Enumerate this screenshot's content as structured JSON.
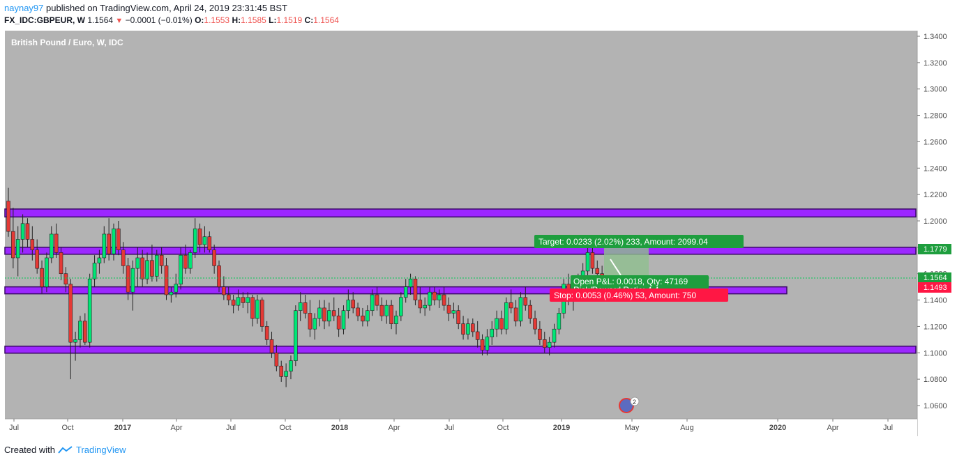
{
  "header": {
    "user": "naynay97",
    "published": "published on TradingView.com, April 24, 2019 23:31:45 BST",
    "symbol": "FX_IDC:GBPEUR, W",
    "last": "1.1564",
    "change_arrow": "▼",
    "change": "−0.0001 (−0.01%)",
    "o_label": "O:",
    "o_value": "1.1553",
    "h_label": "H:",
    "h_value": "1.1585",
    "l_label": "L:",
    "l_value": "1.1519",
    "c_label": "C:",
    "c_value": "1.1564"
  },
  "chart_title": "British Pound / Euro, W, IDC",
  "footer": {
    "created_with": "Created with",
    "brand": "TradingView"
  },
  "colors": {
    "background": "#b3b3b3",
    "zone_fill": "#9c27ff",
    "up_candle": "#00e676",
    "down_candle": "#e53935",
    "target_label": "#1e9e3e",
    "stop_label": "#ff1744",
    "price_label": "#1e9e3e"
  },
  "price_labels": {
    "current": "1.1564",
    "entry": "1.1493",
    "target_price": "1.1779"
  },
  "position_tool": {
    "target": "Target: 0.0233 (2.02%) 233, Amount: 2099.04",
    "open": "Open P&L: 0.0018, Qty: 47169",
    "ratio": "Risk/Reward Ratio: 4.4",
    "stop": "Stop: 0.0053 (0.46%) 53, Amount: 750"
  },
  "badge_count": "2",
  "chart_data": {
    "type": "candlestick",
    "title": "British Pound / Euro, W, IDC",
    "y_ticks": [
      "1.3400",
      "1.3200",
      "1.3000",
      "1.2800",
      "1.2600",
      "1.2400",
      "1.2200",
      "1.2000",
      "1.1800",
      "1.1600",
      "1.1400",
      "1.1200",
      "1.1000",
      "1.0800",
      "1.0600"
    ],
    "x_ticks": [
      "Jul",
      "Oct",
      "2017",
      "Apr",
      "Jul",
      "Oct",
      "2018",
      "Apr",
      "Jul",
      "Oct",
      "2019",
      "May",
      "Aug",
      "2020",
      "Apr",
      "Jul"
    ],
    "zones": [
      {
        "low": 1.203,
        "high": 1.209
      },
      {
        "low": 1.177,
        "high": 1.18
      },
      {
        "low": 1.147,
        "high": 1.15
      },
      {
        "low": 1.101,
        "high": 1.105
      }
    ],
    "candles": [
      {
        "o": 1.215,
        "h": 1.225,
        "l": 1.188,
        "c": 1.192
      },
      {
        "o": 1.192,
        "h": 1.21,
        "l": 1.164,
        "c": 1.172
      },
      {
        "o": 1.172,
        "h": 1.196,
        "l": 1.158,
        "c": 1.186
      },
      {
        "o": 1.186,
        "h": 1.205,
        "l": 1.176,
        "c": 1.198
      },
      {
        "o": 1.198,
        "h": 1.202,
        "l": 1.18,
        "c": 1.186
      },
      {
        "o": 1.186,
        "h": 1.196,
        "l": 1.17,
        "c": 1.178
      },
      {
        "o": 1.178,
        "h": 1.186,
        "l": 1.16,
        "c": 1.164
      },
      {
        "o": 1.164,
        "h": 1.17,
        "l": 1.145,
        "c": 1.15
      },
      {
        "o": 1.15,
        "h": 1.176,
        "l": 1.146,
        "c": 1.172
      },
      {
        "o": 1.172,
        "h": 1.196,
        "l": 1.168,
        "c": 1.19
      },
      {
        "o": 1.19,
        "h": 1.198,
        "l": 1.172,
        "c": 1.176
      },
      {
        "o": 1.176,
        "h": 1.18,
        "l": 1.155,
        "c": 1.16
      },
      {
        "o": 1.16,
        "h": 1.165,
        "l": 1.146,
        "c": 1.152
      },
      {
        "o": 1.152,
        "h": 1.156,
        "l": 1.08,
        "c": 1.108
      },
      {
        "o": 1.108,
        "h": 1.116,
        "l": 1.094,
        "c": 1.11
      },
      {
        "o": 1.11,
        "h": 1.128,
        "l": 1.104,
        "c": 1.124
      },
      {
        "o": 1.124,
        "h": 1.13,
        "l": 1.106,
        "c": 1.108
      },
      {
        "o": 1.108,
        "h": 1.16,
        "l": 1.104,
        "c": 1.156
      },
      {
        "o": 1.156,
        "h": 1.174,
        "l": 1.15,
        "c": 1.168
      },
      {
        "o": 1.168,
        "h": 1.178,
        "l": 1.16,
        "c": 1.172
      },
      {
        "o": 1.172,
        "h": 1.196,
        "l": 1.168,
        "c": 1.19
      },
      {
        "o": 1.19,
        "h": 1.202,
        "l": 1.17,
        "c": 1.175
      },
      {
        "o": 1.175,
        "h": 1.198,
        "l": 1.17,
        "c": 1.194
      },
      {
        "o": 1.194,
        "h": 1.2,
        "l": 1.174,
        "c": 1.178
      },
      {
        "o": 1.178,
        "h": 1.184,
        "l": 1.16,
        "c": 1.166
      },
      {
        "o": 1.166,
        "h": 1.172,
        "l": 1.14,
        "c": 1.146
      },
      {
        "o": 1.146,
        "h": 1.17,
        "l": 1.132,
        "c": 1.164
      },
      {
        "o": 1.164,
        "h": 1.18,
        "l": 1.15,
        "c": 1.172
      },
      {
        "o": 1.172,
        "h": 1.178,
        "l": 1.15,
        "c": 1.156
      },
      {
        "o": 1.156,
        "h": 1.176,
        "l": 1.152,
        "c": 1.17
      },
      {
        "o": 1.17,
        "h": 1.182,
        "l": 1.154,
        "c": 1.158
      },
      {
        "o": 1.158,
        "h": 1.178,
        "l": 1.154,
        "c": 1.174
      },
      {
        "o": 1.174,
        "h": 1.18,
        "l": 1.16,
        "c": 1.166
      },
      {
        "o": 1.166,
        "h": 1.172,
        "l": 1.14,
        "c": 1.144
      },
      {
        "o": 1.144,
        "h": 1.15,
        "l": 1.138,
        "c": 1.146
      },
      {
        "o": 1.146,
        "h": 1.16,
        "l": 1.142,
        "c": 1.152
      },
      {
        "o": 1.152,
        "h": 1.18,
        "l": 1.148,
        "c": 1.174
      },
      {
        "o": 1.174,
        "h": 1.182,
        "l": 1.16,
        "c": 1.164
      },
      {
        "o": 1.164,
        "h": 1.178,
        "l": 1.16,
        "c": 1.176
      },
      {
        "o": 1.176,
        "h": 1.202,
        "l": 1.172,
        "c": 1.194
      },
      {
        "o": 1.194,
        "h": 1.198,
        "l": 1.176,
        "c": 1.182
      },
      {
        "o": 1.182,
        "h": 1.196,
        "l": 1.176,
        "c": 1.188
      },
      {
        "o": 1.188,
        "h": 1.192,
        "l": 1.176,
        "c": 1.178
      },
      {
        "o": 1.178,
        "h": 1.182,
        "l": 1.16,
        "c": 1.166
      },
      {
        "o": 1.166,
        "h": 1.17,
        "l": 1.146,
        "c": 1.15
      },
      {
        "o": 1.15,
        "h": 1.158,
        "l": 1.14,
        "c": 1.144
      },
      {
        "o": 1.144,
        "h": 1.15,
        "l": 1.136,
        "c": 1.14
      },
      {
        "o": 1.14,
        "h": 1.144,
        "l": 1.13,
        "c": 1.136
      },
      {
        "o": 1.136,
        "h": 1.148,
        "l": 1.132,
        "c": 1.142
      },
      {
        "o": 1.142,
        "h": 1.146,
        "l": 1.134,
        "c": 1.138
      },
      {
        "o": 1.138,
        "h": 1.146,
        "l": 1.13,
        "c": 1.142
      },
      {
        "o": 1.142,
        "h": 1.144,
        "l": 1.12,
        "c": 1.126
      },
      {
        "o": 1.126,
        "h": 1.144,
        "l": 1.122,
        "c": 1.14
      },
      {
        "o": 1.14,
        "h": 1.142,
        "l": 1.116,
        "c": 1.12
      },
      {
        "o": 1.12,
        "h": 1.124,
        "l": 1.106,
        "c": 1.11
      },
      {
        "o": 1.11,
        "h": 1.116,
        "l": 1.096,
        "c": 1.1
      },
      {
        "o": 1.1,
        "h": 1.106,
        "l": 1.086,
        "c": 1.09
      },
      {
        "o": 1.09,
        "h": 1.094,
        "l": 1.078,
        "c": 1.082
      },
      {
        "o": 1.082,
        "h": 1.092,
        "l": 1.074,
        "c": 1.086
      },
      {
        "o": 1.086,
        "h": 1.098,
        "l": 1.08,
        "c": 1.094
      },
      {
        "o": 1.094,
        "h": 1.136,
        "l": 1.09,
        "c": 1.132
      },
      {
        "o": 1.132,
        "h": 1.146,
        "l": 1.124,
        "c": 1.138
      },
      {
        "o": 1.138,
        "h": 1.144,
        "l": 1.126,
        "c": 1.13
      },
      {
        "o": 1.13,
        "h": 1.14,
        "l": 1.112,
        "c": 1.118
      },
      {
        "o": 1.118,
        "h": 1.13,
        "l": 1.11,
        "c": 1.126
      },
      {
        "o": 1.126,
        "h": 1.14,
        "l": 1.12,
        "c": 1.134
      },
      {
        "o": 1.134,
        "h": 1.14,
        "l": 1.118,
        "c": 1.124
      },
      {
        "o": 1.124,
        "h": 1.138,
        "l": 1.12,
        "c": 1.132
      },
      {
        "o": 1.132,
        "h": 1.142,
        "l": 1.124,
        "c": 1.128
      },
      {
        "o": 1.128,
        "h": 1.134,
        "l": 1.112,
        "c": 1.118
      },
      {
        "o": 1.118,
        "h": 1.136,
        "l": 1.114,
        "c": 1.132
      },
      {
        "o": 1.132,
        "h": 1.148,
        "l": 1.126,
        "c": 1.14
      },
      {
        "o": 1.14,
        "h": 1.146,
        "l": 1.13,
        "c": 1.134
      },
      {
        "o": 1.134,
        "h": 1.138,
        "l": 1.124,
        "c": 1.128
      },
      {
        "o": 1.128,
        "h": 1.134,
        "l": 1.12,
        "c": 1.124
      },
      {
        "o": 1.124,
        "h": 1.136,
        "l": 1.12,
        "c": 1.132
      },
      {
        "o": 1.132,
        "h": 1.148,
        "l": 1.128,
        "c": 1.144
      },
      {
        "o": 1.144,
        "h": 1.15,
        "l": 1.132,
        "c": 1.136
      },
      {
        "o": 1.136,
        "h": 1.142,
        "l": 1.124,
        "c": 1.128
      },
      {
        "o": 1.128,
        "h": 1.14,
        "l": 1.122,
        "c": 1.136
      },
      {
        "o": 1.136,
        "h": 1.14,
        "l": 1.118,
        "c": 1.122
      },
      {
        "o": 1.122,
        "h": 1.132,
        "l": 1.114,
        "c": 1.128
      },
      {
        "o": 1.128,
        "h": 1.146,
        "l": 1.124,
        "c": 1.142
      },
      {
        "o": 1.142,
        "h": 1.156,
        "l": 1.138,
        "c": 1.15
      },
      {
        "o": 1.15,
        "h": 1.16,
        "l": 1.144,
        "c": 1.156
      },
      {
        "o": 1.156,
        "h": 1.158,
        "l": 1.136,
        "c": 1.14
      },
      {
        "o": 1.14,
        "h": 1.15,
        "l": 1.13,
        "c": 1.134
      },
      {
        "o": 1.134,
        "h": 1.142,
        "l": 1.128,
        "c": 1.136
      },
      {
        "o": 1.136,
        "h": 1.15,
        "l": 1.132,
        "c": 1.146
      },
      {
        "o": 1.146,
        "h": 1.15,
        "l": 1.136,
        "c": 1.14
      },
      {
        "o": 1.14,
        "h": 1.148,
        "l": 1.134,
        "c": 1.144
      },
      {
        "o": 1.144,
        "h": 1.15,
        "l": 1.132,
        "c": 1.136
      },
      {
        "o": 1.136,
        "h": 1.142,
        "l": 1.124,
        "c": 1.13
      },
      {
        "o": 1.13,
        "h": 1.138,
        "l": 1.126,
        "c": 1.132
      },
      {
        "o": 1.132,
        "h": 1.136,
        "l": 1.118,
        "c": 1.122
      },
      {
        "o": 1.122,
        "h": 1.128,
        "l": 1.11,
        "c": 1.114
      },
      {
        "o": 1.114,
        "h": 1.126,
        "l": 1.11,
        "c": 1.122
      },
      {
        "o": 1.122,
        "h": 1.126,
        "l": 1.112,
        "c": 1.116
      },
      {
        "o": 1.116,
        "h": 1.124,
        "l": 1.104,
        "c": 1.11
      },
      {
        "o": 1.11,
        "h": 1.114,
        "l": 1.098,
        "c": 1.102
      },
      {
        "o": 1.102,
        "h": 1.118,
        "l": 1.098,
        "c": 1.112
      },
      {
        "o": 1.112,
        "h": 1.124,
        "l": 1.106,
        "c": 1.118
      },
      {
        "o": 1.118,
        "h": 1.132,
        "l": 1.112,
        "c": 1.126
      },
      {
        "o": 1.126,
        "h": 1.132,
        "l": 1.114,
        "c": 1.118
      },
      {
        "o": 1.118,
        "h": 1.142,
        "l": 1.114,
        "c": 1.138
      },
      {
        "o": 1.138,
        "h": 1.148,
        "l": 1.13,
        "c": 1.134
      },
      {
        "o": 1.134,
        "h": 1.14,
        "l": 1.12,
        "c": 1.124
      },
      {
        "o": 1.124,
        "h": 1.146,
        "l": 1.12,
        "c": 1.142
      },
      {
        "o": 1.142,
        "h": 1.15,
        "l": 1.132,
        "c": 1.136
      },
      {
        "o": 1.136,
        "h": 1.14,
        "l": 1.122,
        "c": 1.126
      },
      {
        "o": 1.126,
        "h": 1.132,
        "l": 1.114,
        "c": 1.118
      },
      {
        "o": 1.118,
        "h": 1.124,
        "l": 1.106,
        "c": 1.11
      },
      {
        "o": 1.11,
        "h": 1.116,
        "l": 1.1,
        "c": 1.104
      },
      {
        "o": 1.104,
        "h": 1.112,
        "l": 1.098,
        "c": 1.108
      },
      {
        "o": 1.108,
        "h": 1.122,
        "l": 1.104,
        "c": 1.118
      },
      {
        "o": 1.118,
        "h": 1.134,
        "l": 1.114,
        "c": 1.13
      },
      {
        "o": 1.13,
        "h": 1.156,
        "l": 1.126,
        "c": 1.152
      },
      {
        "o": 1.152,
        "h": 1.16,
        "l": 1.136,
        "c": 1.14
      },
      {
        "o": 1.14,
        "h": 1.158,
        "l": 1.132,
        "c": 1.152
      },
      {
        "o": 1.152,
        "h": 1.16,
        "l": 1.144,
        "c": 1.156
      },
      {
        "o": 1.156,
        "h": 1.168,
        "l": 1.15,
        "c": 1.162
      },
      {
        "o": 1.162,
        "h": 1.18,
        "l": 1.156,
        "c": 1.176
      },
      {
        "o": 1.176,
        "h": 1.184,
        "l": 1.16,
        "c": 1.164
      },
      {
        "o": 1.164,
        "h": 1.17,
        "l": 1.156,
        "c": 1.16
      },
      {
        "o": 1.16,
        "h": 1.166,
        "l": 1.152,
        "c": 1.156
      },
      {
        "o": 1.153,
        "h": 1.1585,
        "l": 1.1519,
        "c": 1.1564
      }
    ]
  }
}
